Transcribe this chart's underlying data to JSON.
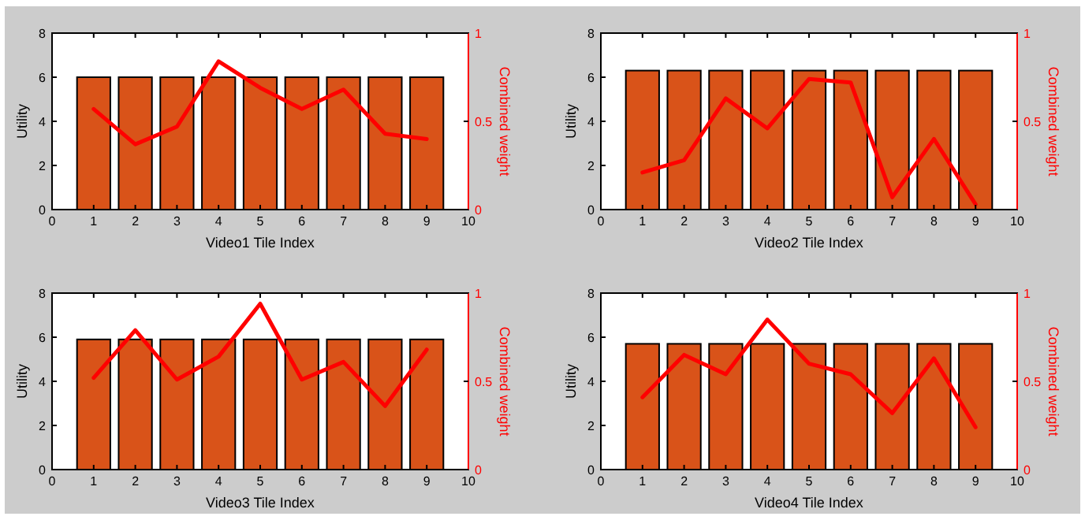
{
  "chart_data": [
    {
      "type": "bar",
      "xlabel": "Video1 Tile Index",
      "ylabel": "Utility",
      "y2label": "Combined weight",
      "x": [
        1,
        2,
        3,
        4,
        5,
        6,
        7,
        8,
        9
      ],
      "xlim": [
        0,
        10
      ],
      "xticks": [
        0,
        1,
        2,
        3,
        4,
        5,
        6,
        7,
        8,
        9,
        10
      ],
      "ylim": [
        0,
        8
      ],
      "yticks": [
        0,
        2,
        4,
        6,
        8
      ],
      "y2lim": [
        0,
        1
      ],
      "y2ticks": [
        0,
        0.5,
        1
      ],
      "grid": false,
      "series": [
        {
          "color": "#d95319",
          "values": [
            6,
            6,
            6,
            6,
            6,
            6,
            6,
            6,
            6
          ]
        },
        {
          "type": "line",
          "axis": "y2",
          "color": "#ff0000",
          "values": [
            0.57,
            0.37,
            0.47,
            0.84,
            0.69,
            0.57,
            0.68,
            0.43,
            0.4
          ]
        }
      ]
    },
    {
      "type": "bar",
      "xlabel": "Video2 Tile Index",
      "ylabel": "Utility",
      "y2label": "Combined weight",
      "x": [
        1,
        2,
        3,
        4,
        5,
        6,
        7,
        8,
        9
      ],
      "xlim": [
        0,
        10
      ],
      "xticks": [
        0,
        1,
        2,
        3,
        4,
        5,
        6,
        7,
        8,
        9,
        10
      ],
      "ylim": [
        0,
        8
      ],
      "yticks": [
        0,
        2,
        4,
        6,
        8
      ],
      "y2lim": [
        0,
        1
      ],
      "y2ticks": [
        {
          "value": 0,
          "label": null
        },
        0.5,
        1
      ],
      "grid": false,
      "series": [
        {
          "color": "#d95319",
          "values": [
            6.3,
            6.3,
            6.3,
            6.3,
            6.3,
            6.3,
            6.3,
            6.3,
            6.3
          ]
        },
        {
          "type": "line",
          "axis": "y2",
          "color": "#ff0000",
          "values": [
            0.21,
            0.28,
            0.63,
            0.46,
            0.74,
            0.72,
            0.07,
            0.4,
            0.03
          ]
        }
      ]
    },
    {
      "type": "bar",
      "xlabel": "Video3 Tile Index",
      "ylabel": "Utility",
      "y2label": "Combined weight",
      "x": [
        1,
        2,
        3,
        4,
        5,
        6,
        7,
        8,
        9
      ],
      "xlim": [
        0,
        10
      ],
      "xticks": [
        0,
        1,
        2,
        3,
        4,
        5,
        6,
        7,
        8,
        9,
        10
      ],
      "ylim": [
        0,
        8
      ],
      "yticks": [
        0,
        2,
        4,
        6,
        8
      ],
      "y2lim": [
        0,
        1
      ],
      "y2ticks": [
        0,
        0.5,
        1
      ],
      "grid": false,
      "series": [
        {
          "color": "#d95319",
          "values": [
            5.9,
            5.9,
            5.9,
            5.9,
            5.9,
            5.9,
            5.9,
            5.9,
            5.9
          ]
        },
        {
          "type": "line",
          "axis": "y2",
          "color": "#ff0000",
          "values": [
            0.52,
            0.79,
            0.51,
            0.64,
            0.94,
            0.51,
            0.61,
            0.36,
            0.68
          ]
        }
      ]
    },
    {
      "type": "bar",
      "xlabel": "Video4 Tile Index",
      "ylabel": "Utility",
      "y2label": "Combined weight",
      "x": [
        1,
        2,
        3,
        4,
        5,
        6,
        7,
        8,
        9
      ],
      "xlim": [
        0,
        10
      ],
      "xticks": [
        0,
        1,
        2,
        3,
        4,
        5,
        6,
        7,
        8,
        9,
        10
      ],
      "ylim": [
        0,
        8
      ],
      "yticks": [
        0,
        2,
        4,
        6,
        8
      ],
      "y2lim": [
        0,
        1
      ],
      "y2ticks": [
        0,
        0.5,
        1
      ],
      "grid": false,
      "series": [
        {
          "color": "#d95319",
          "values": [
            5.7,
            5.7,
            5.7,
            5.7,
            5.7,
            5.7,
            5.7,
            5.7,
            5.7
          ]
        },
        {
          "type": "line",
          "axis": "y2",
          "color": "#ff0000",
          "values": [
            0.41,
            0.65,
            0.54,
            0.85,
            0.6,
            0.54,
            0.32,
            0.63,
            0.24
          ]
        }
      ]
    }
  ]
}
